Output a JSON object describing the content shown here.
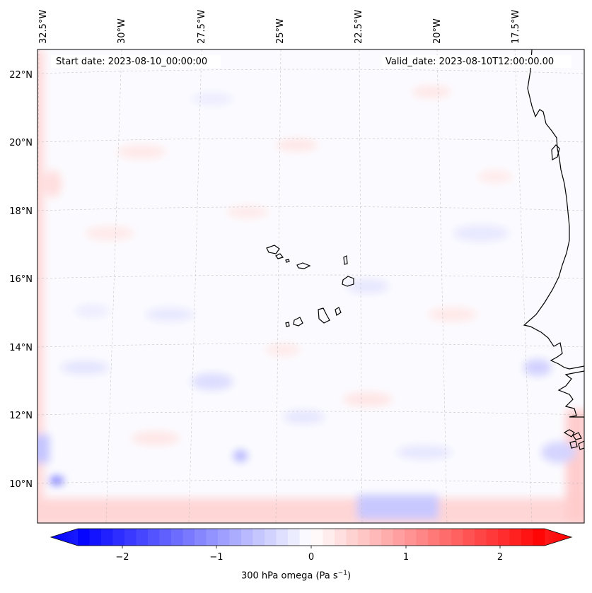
{
  "map": {
    "start_date_label": "Start date: 2023-08-10_00:00:00",
    "valid_date_label": "Valid_date: 2023-08-10T12:00:00.00",
    "field": "300 hPa omega",
    "lon_labels": [
      "32.5°W",
      "30°W",
      "27.5°W",
      "25°W",
      "22.5°W",
      "20°W",
      "17.5°W"
    ],
    "lat_labels": [
      "22°N",
      "20°N",
      "18°N",
      "16°N",
      "14°N",
      "12°N",
      "10°N"
    ],
    "region": "Cape Verde Islands and West African coast (Senegal, Gambia, Guinea-Bissau)"
  },
  "colorbar": {
    "title_prefix": "300 hPa omega (Pa s",
    "title_exp": "−1",
    "title_suffix": ")",
    "ticks": [
      "−2",
      "−1",
      "0",
      "1",
      "2"
    ],
    "range": [
      -2.6,
      2.6
    ],
    "colors": {
      "min": "#0000ff",
      "mid": "#ffffff",
      "max": "#ff0000"
    }
  },
  "colors": {
    "frame": "#000000",
    "coast": "#000000",
    "grid": "#b0b0b0"
  }
}
